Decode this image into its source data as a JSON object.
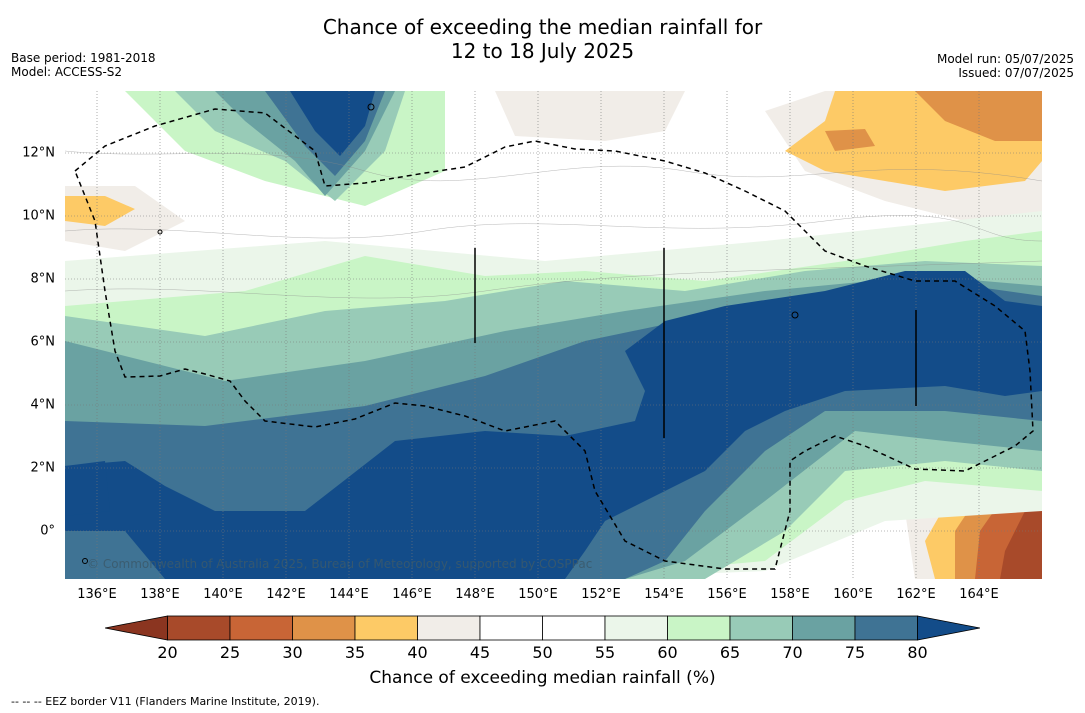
{
  "header": {
    "title_line1": "Chance of exceeding the median rainfall for",
    "title_line2": "12 to 18 July 2025",
    "base_period": "Base period: 1981-2018",
    "model": "Model: ACCESS-S2",
    "model_run": "Model run: 05/07/2025",
    "issued": "Issued: 07/07/2025"
  },
  "map": {
    "x_ticks": [
      "136°E",
      "138°E",
      "140°E",
      "142°E",
      "144°E",
      "146°E",
      "148°E",
      "150°E",
      "152°E",
      "154°E",
      "156°E",
      "158°E",
      "160°E",
      "162°E",
      "164°E"
    ],
    "y_ticks": [
      "12°N",
      "10°N",
      "8°N",
      "6°N",
      "4°N",
      "2°N",
      "0°"
    ],
    "copyright": "© Commonwealth of Australia 2025, Bureau of Meteorology, supported by COSPPac",
    "lon_range": [
      135,
      166
    ],
    "lat_range": [
      -1.5,
      14
    ],
    "gridlines": true,
    "border_style": "dashed"
  },
  "colorbar": {
    "labels": [
      "20",
      "25",
      "30",
      "35",
      "40",
      "45",
      "50",
      "55",
      "60",
      "65",
      "70",
      "75",
      "80"
    ],
    "colors": [
      "#8b3520",
      "#a84a2a",
      "#c86536",
      "#df9248",
      "#fdca66",
      "#f1ede8",
      "#ffffff",
      "#ffffff",
      "#ebf6ea",
      "#c9f5c6",
      "#98cbb7",
      "#6aa2a2",
      "#3f7394",
      "#134c89"
    ],
    "title": "Chance of exceeding median rainfall (%)",
    "extend": "both"
  },
  "footnote": "--  --  -- EEZ border V11 (Flanders Marine Institute, 2019)."
}
